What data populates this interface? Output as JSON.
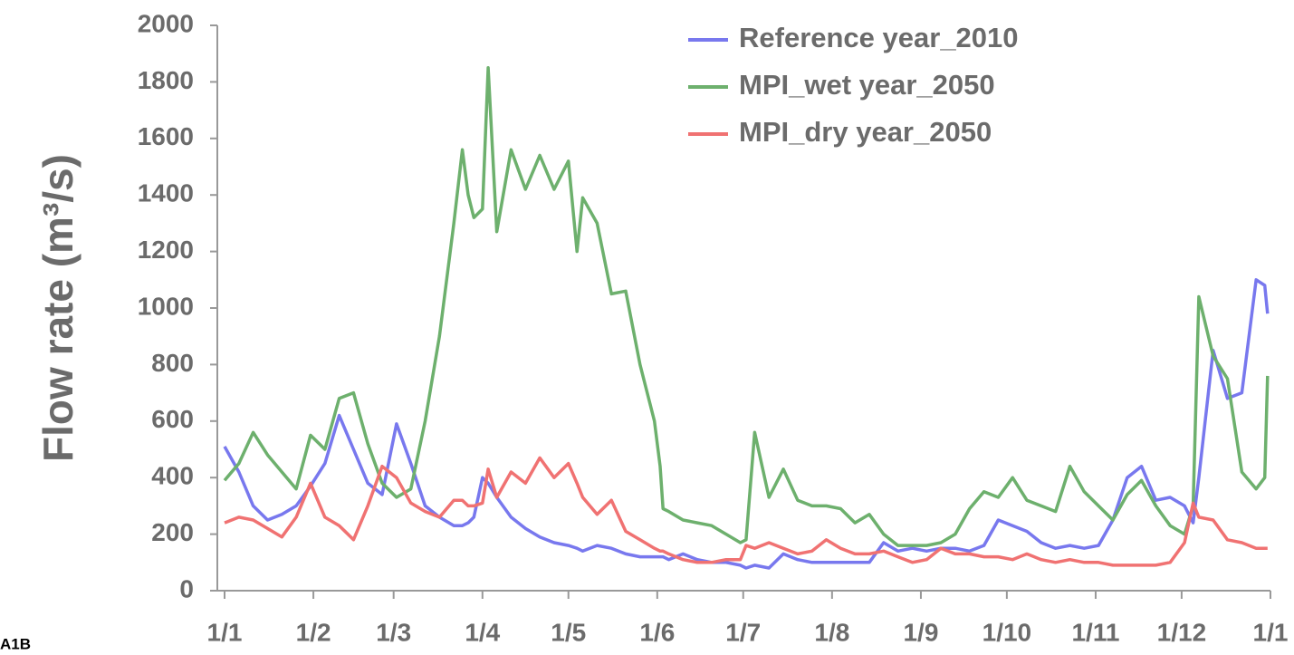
{
  "chart_data": {
    "type": "line",
    "ylabel": "Flow rate  (m³/s)",
    "annotation": "A1B",
    "legend": "top-right",
    "grid": false,
    "xlim": [
      0,
      365
    ],
    "xticks": [
      {
        "value": 0,
        "label": "1/1"
      },
      {
        "value": 31,
        "label": "1/2"
      },
      {
        "value": 59,
        "label": "1/3"
      },
      {
        "value": 90,
        "label": "1/4"
      },
      {
        "value": 120,
        "label": "1/5"
      },
      {
        "value": 151,
        "label": "1/6"
      },
      {
        "value": 181,
        "label": "1/7"
      },
      {
        "value": 212,
        "label": "1/8"
      },
      {
        "value": 243,
        "label": "1/9"
      },
      {
        "value": 273,
        "label": "1/10"
      },
      {
        "value": 304,
        "label": "1/11"
      },
      {
        "value": 334,
        "label": "1/12"
      },
      {
        "value": 365,
        "label": "1/1"
      }
    ],
    "ylim": [
      0,
      2000
    ],
    "yticks": [
      0,
      200,
      400,
      600,
      800,
      1000,
      1200,
      1400,
      1600,
      1800,
      2000
    ],
    "x": [
      0,
      5,
      10,
      15,
      20,
      25,
      30,
      35,
      40,
      45,
      50,
      55,
      60,
      65,
      70,
      75,
      80,
      83,
      85,
      87,
      90,
      92,
      95,
      100,
      105,
      110,
      115,
      120,
      123,
      125,
      130,
      135,
      140,
      145,
      150,
      152,
      153,
      155,
      160,
      165,
      170,
      175,
      180,
      182,
      185,
      190,
      195,
      200,
      205,
      210,
      215,
      220,
      225,
      230,
      235,
      240,
      245,
      250,
      255,
      260,
      265,
      270,
      275,
      280,
      285,
      290,
      295,
      300,
      305,
      310,
      315,
      320,
      325,
      330,
      335,
      338,
      340,
      345,
      350,
      355,
      360,
      363,
      364
    ],
    "series": [
      {
        "name": "Reference year_2010",
        "color": "#7878ee",
        "values": [
          510,
          420,
          300,
          250,
          270,
          300,
          370,
          450,
          620,
          500,
          380,
          340,
          590,
          450,
          300,
          260,
          230,
          230,
          240,
          260,
          400,
          380,
          330,
          260,
          220,
          190,
          170,
          160,
          150,
          140,
          160,
          150,
          130,
          120,
          120,
          120,
          120,
          110,
          130,
          110,
          100,
          100,
          90,
          80,
          90,
          80,
          130,
          110,
          100,
          100,
          100,
          100,
          100,
          170,
          140,
          150,
          140,
          150,
          150,
          140,
          160,
          250,
          230,
          210,
          170,
          150,
          160,
          150,
          160,
          250,
          400,
          440,
          320,
          330,
          300,
          240,
          400,
          850,
          680,
          700,
          1100,
          1080,
          980
        ]
      },
      {
        "name": "MPI_wet year_2050",
        "color": "#6db06d",
        "values": [
          390,
          450,
          560,
          480,
          420,
          360,
          550,
          500,
          680,
          700,
          520,
          380,
          330,
          360,
          600,
          900,
          1300,
          1560,
          1400,
          1320,
          1350,
          1850,
          1270,
          1560,
          1420,
          1540,
          1420,
          1520,
          1200,
          1390,
          1300,
          1050,
          1060,
          800,
          600,
          440,
          290,
          280,
          250,
          240,
          230,
          200,
          170,
          180,
          560,
          330,
          430,
          320,
          300,
          300,
          290,
          240,
          270,
          200,
          160,
          160,
          160,
          170,
          200,
          290,
          350,
          330,
          400,
          320,
          300,
          280,
          440,
          350,
          300,
          250,
          340,
          390,
          300,
          230,
          200,
          300,
          1040,
          830,
          750,
          420,
          360,
          400,
          760
        ]
      },
      {
        "name": "MPI_dry year_2050",
        "color": "#f07272",
        "values": [
          240,
          260,
          250,
          220,
          190,
          260,
          380,
          260,
          230,
          180,
          300,
          440,
          400,
          310,
          280,
          260,
          320,
          320,
          300,
          300,
          310,
          430,
          330,
          420,
          380,
          470,
          400,
          450,
          380,
          330,
          270,
          320,
          210,
          180,
          150,
          140,
          140,
          130,
          110,
          100,
          100,
          110,
          110,
          160,
          150,
          170,
          150,
          130,
          140,
          180,
          150,
          130,
          130,
          140,
          120,
          100,
          110,
          150,
          130,
          130,
          120,
          120,
          110,
          130,
          110,
          100,
          110,
          100,
          100,
          90,
          90,
          90,
          90,
          100,
          170,
          310,
          260,
          250,
          180,
          170,
          150,
          150,
          150
        ]
      }
    ]
  }
}
